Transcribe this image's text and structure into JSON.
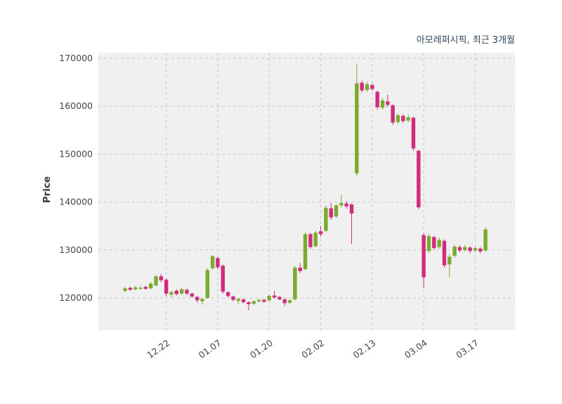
{
  "chart_data": {
    "type": "candlestick",
    "title": "아모레퍼시픽, 최근 3개월",
    "ylabel": "Price",
    "ylim": [
      113000,
      171500
    ],
    "y_ticks": [
      120000,
      130000,
      140000,
      150000,
      160000,
      170000
    ],
    "x_tick_labels": [
      "12.22",
      "01.07",
      "01.20",
      "02.02",
      "02.13",
      "03.04",
      "03.17"
    ],
    "x_tick_indices": [
      8,
      18,
      28,
      38,
      48,
      58,
      68
    ],
    "grid": "dashed",
    "legend": "none",
    "up_color": "#7aab2e",
    "down_color": "#d22a7f",
    "plot_bg": "#f0f0f0",
    "grid_color": "#c9c9c9",
    "tick_color": "#444444",
    "title_color": "#33475c",
    "ohlc": [
      [
        121500,
        122300,
        121200,
        122000
      ],
      [
        122100,
        122400,
        121500,
        121700
      ],
      [
        121800,
        122500,
        121600,
        122200
      ],
      [
        121900,
        122600,
        121700,
        122100
      ],
      [
        122300,
        122500,
        121700,
        121900
      ],
      [
        122000,
        123300,
        121800,
        123000
      ],
      [
        122600,
        124800,
        122400,
        124500
      ],
      [
        124500,
        125000,
        123300,
        123700
      ],
      [
        123800,
        124000,
        120300,
        120900
      ],
      [
        120700,
        121500,
        120000,
        121200
      ],
      [
        121500,
        121800,
        120500,
        120800
      ],
      [
        120900,
        122100,
        120700,
        121800
      ],
      [
        121700,
        121900,
        120600,
        120900
      ],
      [
        120900,
        121100,
        120000,
        120300
      ],
      [
        120200,
        120400,
        119000,
        119500
      ],
      [
        119300,
        120000,
        118600,
        119800
      ],
      [
        120000,
        126200,
        119800,
        125800
      ],
      [
        126200,
        128900,
        125900,
        128700
      ],
      [
        128300,
        128600,
        126000,
        126400
      ],
      [
        126700,
        127000,
        120900,
        121300
      ],
      [
        121200,
        121400,
        120100,
        120400
      ],
      [
        120300,
        120500,
        119300,
        119600
      ],
      [
        119400,
        120000,
        118700,
        119800
      ],
      [
        119700,
        119900,
        118900,
        119100
      ],
      [
        119100,
        119300,
        117400,
        118700
      ],
      [
        118800,
        119500,
        118500,
        119300
      ],
      [
        119300,
        119800,
        119000,
        119600
      ],
      [
        119600,
        119800,
        119000,
        119200
      ],
      [
        119500,
        120700,
        119300,
        120400
      ],
      [
        120500,
        121500,
        119900,
        120100
      ],
      [
        120200,
        120400,
        119500,
        119700
      ],
      [
        119700,
        119900,
        118300,
        118900
      ],
      [
        119000,
        119700,
        118700,
        119500
      ],
      [
        119700,
        126700,
        119500,
        126300
      ],
      [
        126300,
        127300,
        125200,
        125600
      ],
      [
        126000,
        133700,
        125800,
        133300
      ],
      [
        133300,
        133600,
        130200,
        130600
      ],
      [
        130800,
        134000,
        130500,
        133600
      ],
      [
        133900,
        135000,
        132800,
        133300
      ],
      [
        134000,
        139300,
        133700,
        138800
      ],
      [
        138700,
        139800,
        136300,
        136800
      ],
      [
        137000,
        139600,
        136700,
        139300
      ],
      [
        139300,
        141500,
        138900,
        139800
      ],
      [
        139700,
        140200,
        138700,
        139100
      ],
      [
        139500,
        139700,
        131200,
        137600
      ],
      [
        146000,
        168800,
        145500,
        164800
      ],
      [
        164900,
        165400,
        162900,
        163300
      ],
      [
        163400,
        165100,
        163000,
        164600
      ],
      [
        164400,
        164800,
        163200,
        163600
      ],
      [
        163000,
        163300,
        159300,
        159800
      ],
      [
        159700,
        161700,
        159300,
        161200
      ],
      [
        161000,
        162400,
        159900,
        160300
      ],
      [
        160200,
        160400,
        156100,
        156600
      ],
      [
        156700,
        158500,
        156300,
        158100
      ],
      [
        158000,
        158300,
        156500,
        156900
      ],
      [
        157000,
        158200,
        156600,
        157700
      ],
      [
        157600,
        157800,
        150700,
        151200
      ],
      [
        150700,
        150900,
        138500,
        138900
      ],
      [
        133100,
        133500,
        122100,
        124300
      ],
      [
        129800,
        133400,
        129400,
        132900
      ],
      [
        132700,
        133000,
        130000,
        130400
      ],
      [
        130600,
        132600,
        130200,
        132100
      ],
      [
        131900,
        132200,
        126300,
        126800
      ],
      [
        127000,
        129100,
        124300,
        128600
      ],
      [
        128800,
        131100,
        128400,
        130700
      ],
      [
        130600,
        131000,
        129500,
        129900
      ],
      [
        130000,
        131000,
        129600,
        130600
      ],
      [
        130500,
        130800,
        129300,
        129800
      ],
      [
        129900,
        130700,
        129500,
        130400
      ],
      [
        130300,
        130600,
        129300,
        129700
      ],
      [
        129900,
        134700,
        129600,
        134300
      ]
    ]
  }
}
